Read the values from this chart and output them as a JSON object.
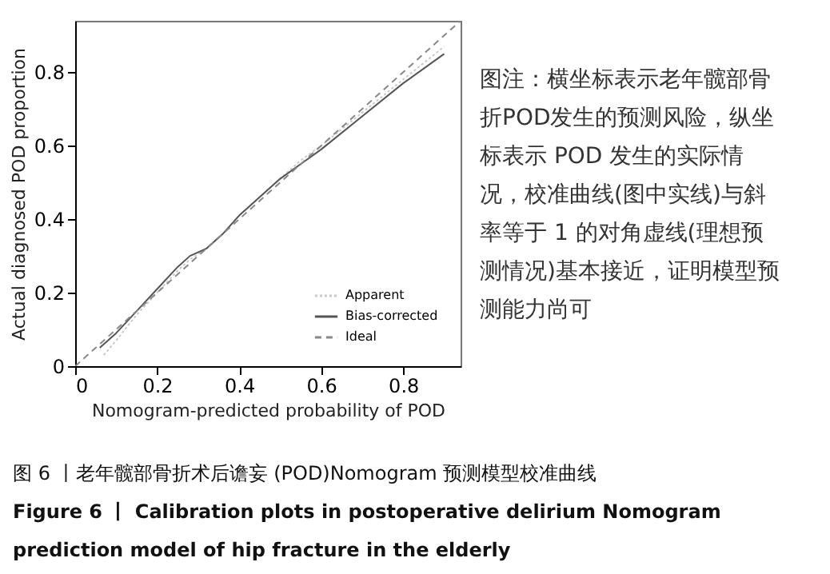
{
  "chart_data": {
    "type": "line",
    "xlabel": "Nomogram-predicted probability of POD",
    "ylabel": "Actual diagnosed POD proportion",
    "xlim": [
      0,
      0.94
    ],
    "ylim": [
      0,
      0.94
    ],
    "xticks": [
      0,
      0.2,
      0.4,
      0.6,
      0.8
    ],
    "yticks": [
      0,
      0.2,
      0.4,
      0.6,
      0.8
    ],
    "grid": false,
    "legend": "bottom right",
    "series": [
      {
        "name": "Apparent",
        "color": "#c8c8c8",
        "line_style": "dotted",
        "x": [
          0.07,
          0.1,
          0.15,
          0.2,
          0.25,
          0.28,
          0.32,
          0.36,
          0.4,
          0.45,
          0.5,
          0.55,
          0.6,
          0.7,
          0.8,
          0.9
        ],
        "values": [
          0.03,
          0.07,
          0.14,
          0.2,
          0.26,
          0.29,
          0.32,
          0.36,
          0.41,
          0.46,
          0.51,
          0.56,
          0.6,
          0.69,
          0.78,
          0.87
        ]
      },
      {
        "name": "Bias-corrected",
        "color": "#555555",
        "line_style": "solid",
        "x": [
          0.06,
          0.1,
          0.15,
          0.2,
          0.25,
          0.28,
          0.32,
          0.36,
          0.4,
          0.45,
          0.5,
          0.55,
          0.6,
          0.7,
          0.8,
          0.9
        ],
        "values": [
          0.05,
          0.09,
          0.15,
          0.21,
          0.27,
          0.3,
          0.32,
          0.36,
          0.41,
          0.46,
          0.51,
          0.55,
          0.59,
          0.68,
          0.77,
          0.85
        ]
      },
      {
        "name": "Ideal",
        "color": "#888888",
        "line_style": "dashed",
        "x": [
          0,
          0.94
        ],
        "values": [
          0,
          0.94
        ]
      }
    ],
    "annotations": [
      "图注：横坐标表示老年髋部骨折POD发生的预测风险，纵坐标表示 POD 发生的实际情况，校准曲线(图中实线)与斜率等于 1 的对角虚线(理想预测情况)基本接近，证明模型预测能力尚可",
      "图 6 丨老年髋部骨折术后谵妄 (POD)Nomogram 预测模型校准曲线",
      "Figure 6 丨 Calibration plots in postoperative delirium Nomogram prediction model of hip fracture in the elderly"
    ]
  }
}
